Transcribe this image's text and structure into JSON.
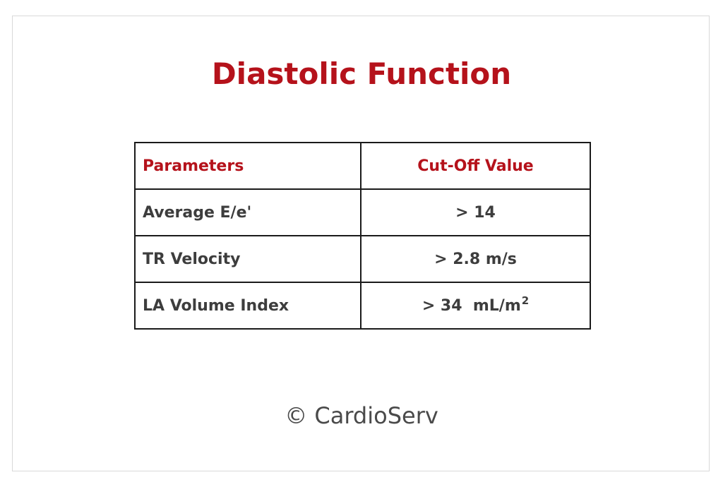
{
  "title": "Diastolic Function",
  "table": {
    "headers": {
      "parameter": "Parameters",
      "value": "Cut-Off Value"
    },
    "rows": [
      {
        "parameter": "Average E/e'",
        "value": "> 14",
        "unit_sup": ""
      },
      {
        "parameter": "TR Velocity",
        "value": "> 2.8 m/s",
        "unit_sup": ""
      },
      {
        "parameter": "LA Volume Index",
        "value": "> 34  mL/m",
        "unit_sup": "2"
      }
    ]
  },
  "footer": {
    "copyright": "© CardioServ"
  },
  "colors": {
    "accent": "#b5121b",
    "text": "#3d3d3d",
    "border": "#1a1a1a"
  }
}
